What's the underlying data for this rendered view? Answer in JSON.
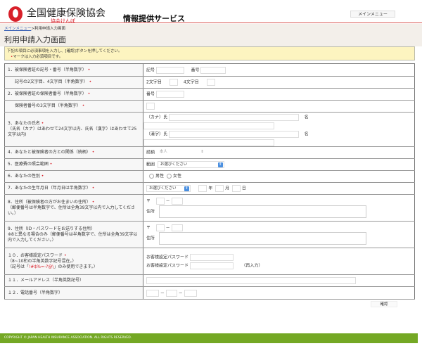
{
  "header": {
    "org_name": "全国健康保険協会",
    "org_sub": "協会けんぽ",
    "service": "情報提供サービス",
    "main_menu": "メインメニュー"
  },
  "breadcrumb": {
    "home": "メインメニュー",
    "sep": ">",
    "current": "利用申請入力画面"
  },
  "page_title": "利用申請入力画面",
  "notice": {
    "line1": "下記の項目に必須事項を入力し、[確認]ボタンを押してください。",
    "line2": "マークは入力必須項目です。",
    "mark": "•"
  },
  "rows": {
    "r1": {
      "label": "1．被保険者証の記号・番号（半角数字）",
      "f1": "記号",
      "f2": "番号"
    },
    "r1b": {
      "label": "記号の2文字目、4文字目（半角数字）",
      "f1": "2文字目",
      "f2": "4文字目"
    },
    "r2": {
      "label": "2．被保険者証の保険者番号（半角数字）",
      "f1": "番号"
    },
    "r2b": {
      "label": "保険者番号の3文字目（半角数字）"
    },
    "r3": {
      "label": "3．あなたの氏名",
      "note": "（氏名（カナ）はあわせて24文字以内、氏名（漢字）はあわせて25文字以内)",
      "kana": "（カナ）氏",
      "kanji": "（漢字）氏",
      "mei": "名"
    },
    "r4": {
      "label": "4．あなたと被保険者の方との関係（続柄）",
      "f1": "続柄",
      "value": "本人"
    },
    "r5": {
      "label": "5．医療費の照会範囲",
      "f1": "範囲",
      "value": "お選びください"
    },
    "r6": {
      "label": "6．あなたの性別",
      "male": "男性",
      "female": "女性"
    },
    "r7": {
      "label": "7．あなたの生年月日（年月日は半角数字）",
      "value": "お選びください",
      "y": "年",
      "m": "月",
      "d": "日"
    },
    "r8": {
      "label": "8．住所（被保険者の方がお住まいの住所）",
      "note": "（郵便番号は半角数字で、住所は全角39文字以内で入力してください。）",
      "zip": "〒",
      "dash": "－",
      "addr": "住所"
    },
    "r9": {
      "label": "9．住所（ID・パスワードをお送りする住所）",
      "note": "※8と異なる場合のみ（郵便番号は半角数字で、住所は全角39文字以内で入力してください。）",
      "zip": "〒",
      "dash": "－",
      "addr": "住所"
    },
    "r10": {
      "label": "１０．お客様設定パスワード",
      "note1": "（8~10桁の半角英数字記号混在。）",
      "note2a": "（記号は「",
      "symbols": "!#$%=-?@\\",
      "note2b": "」のみ使用できます。）",
      "pw": "お客様設定パスワード",
      "pw2": "お客様設定パスワード",
      "re": "（再入力）"
    },
    "r11": {
      "label": "１１．メールアドレス（半角英数記号）"
    },
    "r12": {
      "label": "１２．電話番号（半角数字）",
      "dash": "－"
    }
  },
  "confirm": "確認",
  "footer": "COPYRIGHT © JAPAN HEALTH INSURANCE ASSOCIATION. ALL RIGHTS RESERVED.",
  "colors": {
    "brand": "#d8202a",
    "footer": "#74a824",
    "notice": "#fdf4c0"
  }
}
